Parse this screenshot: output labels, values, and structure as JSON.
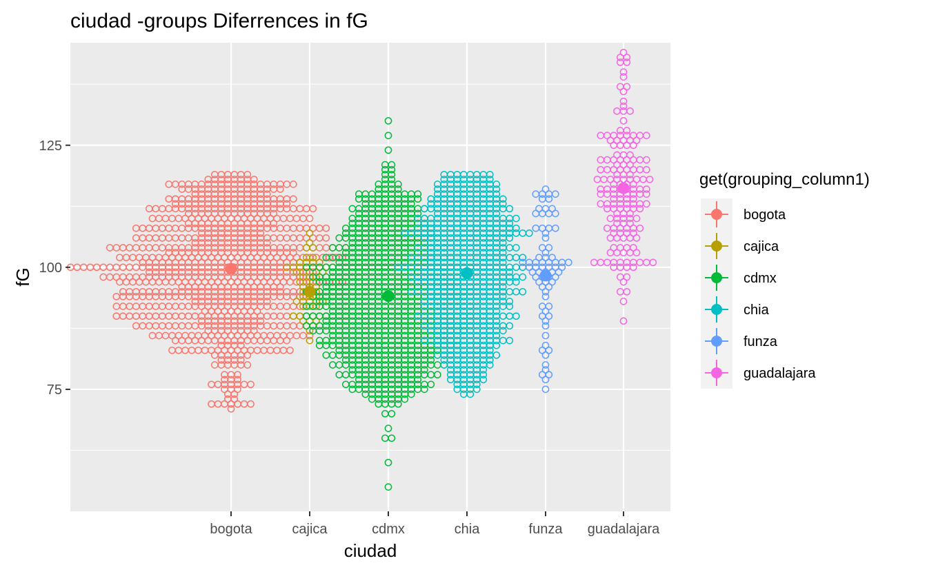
{
  "chart_data": {
    "type": "scatter",
    "title": "ciudad -groups Diferrences in  fG",
    "xlabel": "ciudad",
    "ylabel": "fG",
    "categories": [
      "bogota",
      "cajica",
      "cdmx",
      "chia",
      "funza",
      "guadalajara"
    ],
    "ylim": [
      50,
      146
    ],
    "y_ticks": [
      75,
      100,
      125
    ],
    "grid": true,
    "legend": {
      "title": "get(grouping_column1)",
      "placement": "right",
      "entries": [
        "bogota",
        "cajica",
        "cdmx",
        "chia",
        "funza",
        "guadalajara"
      ]
    },
    "colors": [
      "#F8766D",
      "#B79F00",
      "#00BA38",
      "#00BFC4",
      "#619CFF",
      "#F564E3"
    ],
    "series": [
      {
        "name": "bogota",
        "mean": 99.7,
        "mean_ci": [
          98.9,
          100.5
        ],
        "distribution": [
          [
            71,
            1
          ],
          [
            72,
            7
          ],
          [
            73,
            2
          ],
          [
            74,
            2
          ],
          [
            75,
            3
          ],
          [
            76,
            7
          ],
          [
            77,
            3
          ],
          [
            78,
            3
          ],
          [
            80,
            6
          ],
          [
            81,
            4
          ],
          [
            82,
            6
          ],
          [
            83,
            19
          ],
          [
            84,
            4
          ],
          [
            85,
            18
          ],
          [
            86,
            25
          ],
          [
            87,
            8
          ],
          [
            88,
            30
          ],
          [
            89,
            10
          ],
          [
            90,
            36
          ],
          [
            91,
            9
          ],
          [
            92,
            36
          ],
          [
            93,
            12
          ],
          [
            94,
            36
          ],
          [
            95,
            34
          ],
          [
            96,
            16
          ],
          [
            97,
            35
          ],
          [
            98,
            40
          ],
          [
            99,
            26
          ],
          [
            100,
            50
          ],
          [
            101,
            28
          ],
          [
            102,
            35
          ],
          [
            103,
            20
          ],
          [
            104,
            38
          ],
          [
            105,
            12
          ],
          [
            106,
            30
          ],
          [
            107,
            10
          ],
          [
            108,
            30
          ],
          [
            109,
            14
          ],
          [
            110,
            25
          ],
          [
            111,
            14
          ],
          [
            112,
            26
          ],
          [
            113,
            18
          ],
          [
            114,
            20
          ],
          [
            115,
            12
          ],
          [
            116,
            16
          ],
          [
            117,
            20
          ],
          [
            118,
            8
          ],
          [
            119,
            6
          ]
        ]
      },
      {
        "name": "cajica",
        "mean": 95.0,
        "mean_ci": [
          93.4,
          96.6
        ],
        "distribution": [
          [
            85,
            1
          ],
          [
            87,
            1
          ],
          [
            88,
            2
          ],
          [
            89,
            3
          ],
          [
            90,
            6
          ],
          [
            92,
            3
          ],
          [
            93,
            5
          ],
          [
            94,
            3
          ],
          [
            95,
            3
          ],
          [
            96,
            3
          ],
          [
            97,
            4
          ],
          [
            98,
            3
          ],
          [
            99,
            5
          ],
          [
            100,
            8
          ],
          [
            101,
            4
          ],
          [
            102,
            2
          ],
          [
            104,
            2
          ],
          [
            105,
            1
          ],
          [
            107,
            1
          ]
        ]
      },
      {
        "name": "cdmx",
        "mean": 94.1,
        "mean_ci": [
          93.6,
          94.6
        ],
        "distribution": [
          [
            55,
            1
          ],
          [
            60,
            1
          ],
          [
            65,
            2
          ],
          [
            67,
            1
          ],
          [
            70,
            2
          ],
          [
            72,
            4
          ],
          [
            73,
            6
          ],
          [
            74,
            8
          ],
          [
            75,
            12
          ],
          [
            76,
            14
          ],
          [
            77,
            10
          ],
          [
            78,
            16
          ],
          [
            79,
            12
          ],
          [
            80,
            18
          ],
          [
            81,
            14
          ],
          [
            82,
            20
          ],
          [
            83,
            16
          ],
          [
            84,
            22
          ],
          [
            85,
            22
          ],
          [
            86,
            18
          ],
          [
            87,
            24
          ],
          [
            88,
            26
          ],
          [
            89,
            20
          ],
          [
            90,
            26
          ],
          [
            91,
            18
          ],
          [
            92,
            26
          ],
          [
            93,
            22
          ],
          [
            94,
            24
          ],
          [
            95,
            26
          ],
          [
            96,
            20
          ],
          [
            97,
            22
          ],
          [
            98,
            24
          ],
          [
            99,
            18
          ],
          [
            100,
            26
          ],
          [
            101,
            16
          ],
          [
            102,
            20
          ],
          [
            103,
            14
          ],
          [
            104,
            18
          ],
          [
            105,
            12
          ],
          [
            106,
            16
          ],
          [
            107,
            14
          ],
          [
            108,
            14
          ],
          [
            109,
            12
          ],
          [
            110,
            12
          ],
          [
            111,
            10
          ],
          [
            112,
            12
          ],
          [
            113,
            8
          ],
          [
            114,
            10
          ],
          [
            115,
            10
          ],
          [
            116,
            4
          ],
          [
            117,
            4
          ],
          [
            118,
            2
          ],
          [
            119,
            2
          ],
          [
            120,
            2
          ],
          [
            121,
            2
          ],
          [
            124,
            1
          ],
          [
            127,
            1
          ],
          [
            130,
            1
          ]
        ]
      },
      {
        "name": "chia",
        "mean": 98.8,
        "mean_ci": [
          98.2,
          99.4
        ],
        "distribution": [
          [
            74,
            2
          ],
          [
            75,
            4
          ],
          [
            76,
            4
          ],
          [
            77,
            6
          ],
          [
            78,
            6
          ],
          [
            79,
            6
          ],
          [
            80,
            8
          ],
          [
            81,
            8
          ],
          [
            82,
            10
          ],
          [
            83,
            8
          ],
          [
            84,
            10
          ],
          [
            85,
            14
          ],
          [
            86,
            10
          ],
          [
            87,
            12
          ],
          [
            88,
            14
          ],
          [
            89,
            10
          ],
          [
            90,
            16
          ],
          [
            91,
            10
          ],
          [
            92,
            14
          ],
          [
            93,
            14
          ],
          [
            94,
            12
          ],
          [
            95,
            18
          ],
          [
            96,
            12
          ],
          [
            97,
            16
          ],
          [
            98,
            18
          ],
          [
            99,
            14
          ],
          [
            100,
            22
          ],
          [
            101,
            12
          ],
          [
            102,
            18
          ],
          [
            103,
            12
          ],
          [
            104,
            16
          ],
          [
            105,
            12
          ],
          [
            106,
            14
          ],
          [
            107,
            20
          ],
          [
            108,
            16
          ],
          [
            109,
            14
          ],
          [
            110,
            16
          ],
          [
            111,
            10
          ],
          [
            112,
            14
          ],
          [
            113,
            12
          ],
          [
            114,
            12
          ],
          [
            115,
            10
          ],
          [
            116,
            10
          ],
          [
            117,
            10
          ],
          [
            118,
            8
          ],
          [
            119,
            8
          ]
        ]
      },
      {
        "name": "funza",
        "mean": 98.3,
        "mean_ci": [
          97.2,
          99.4
        ],
        "distribution": [
          [
            75,
            1
          ],
          [
            77,
            1
          ],
          [
            78,
            2
          ],
          [
            79,
            1
          ],
          [
            80,
            1
          ],
          [
            82,
            1
          ],
          [
            83,
            2
          ],
          [
            84,
            1
          ],
          [
            86,
            1
          ],
          [
            88,
            1
          ],
          [
            89,
            1
          ],
          [
            90,
            2
          ],
          [
            91,
            1
          ],
          [
            92,
            2
          ],
          [
            94,
            1
          ],
          [
            95,
            1
          ],
          [
            96,
            2
          ],
          [
            97,
            3
          ],
          [
            98,
            4
          ],
          [
            99,
            5
          ],
          [
            100,
            6
          ],
          [
            101,
            8
          ],
          [
            102,
            3
          ],
          [
            103,
            1
          ],
          [
            104,
            2
          ],
          [
            106,
            1
          ],
          [
            107,
            1
          ],
          [
            108,
            4
          ],
          [
            111,
            4
          ],
          [
            112,
            3
          ],
          [
            114,
            2
          ],
          [
            115,
            4
          ],
          [
            116,
            1
          ]
        ]
      },
      {
        "name": "guadalajara",
        "mean": 116.2,
        "mean_ci": [
          115.0,
          117.4
        ],
        "distribution": [
          [
            89,
            1
          ],
          [
            93,
            1
          ],
          [
            95,
            2
          ],
          [
            97,
            1
          ],
          [
            98,
            2
          ],
          [
            100,
            4
          ],
          [
            101,
            10
          ],
          [
            103,
            5
          ],
          [
            104,
            4
          ],
          [
            106,
            5
          ],
          [
            107,
            4
          ],
          [
            108,
            6
          ],
          [
            109,
            3
          ],
          [
            110,
            5
          ],
          [
            111,
            3
          ],
          [
            112,
            6
          ],
          [
            113,
            8
          ],
          [
            114,
            4
          ],
          [
            115,
            8
          ],
          [
            116,
            8
          ],
          [
            117,
            4
          ],
          [
            118,
            9
          ],
          [
            119,
            3
          ],
          [
            120,
            8
          ],
          [
            121,
            3
          ],
          [
            122,
            8
          ],
          [
            123,
            3
          ],
          [
            125,
            4
          ],
          [
            126,
            5
          ],
          [
            127,
            8
          ],
          [
            128,
            2
          ],
          [
            130,
            1
          ],
          [
            132,
            3
          ],
          [
            133,
            1
          ],
          [
            134,
            1
          ],
          [
            136,
            1
          ],
          [
            137,
            2
          ],
          [
            139,
            1
          ],
          [
            140,
            1
          ],
          [
            142,
            2
          ],
          [
            143,
            2
          ],
          [
            144,
            1
          ]
        ]
      }
    ]
  }
}
